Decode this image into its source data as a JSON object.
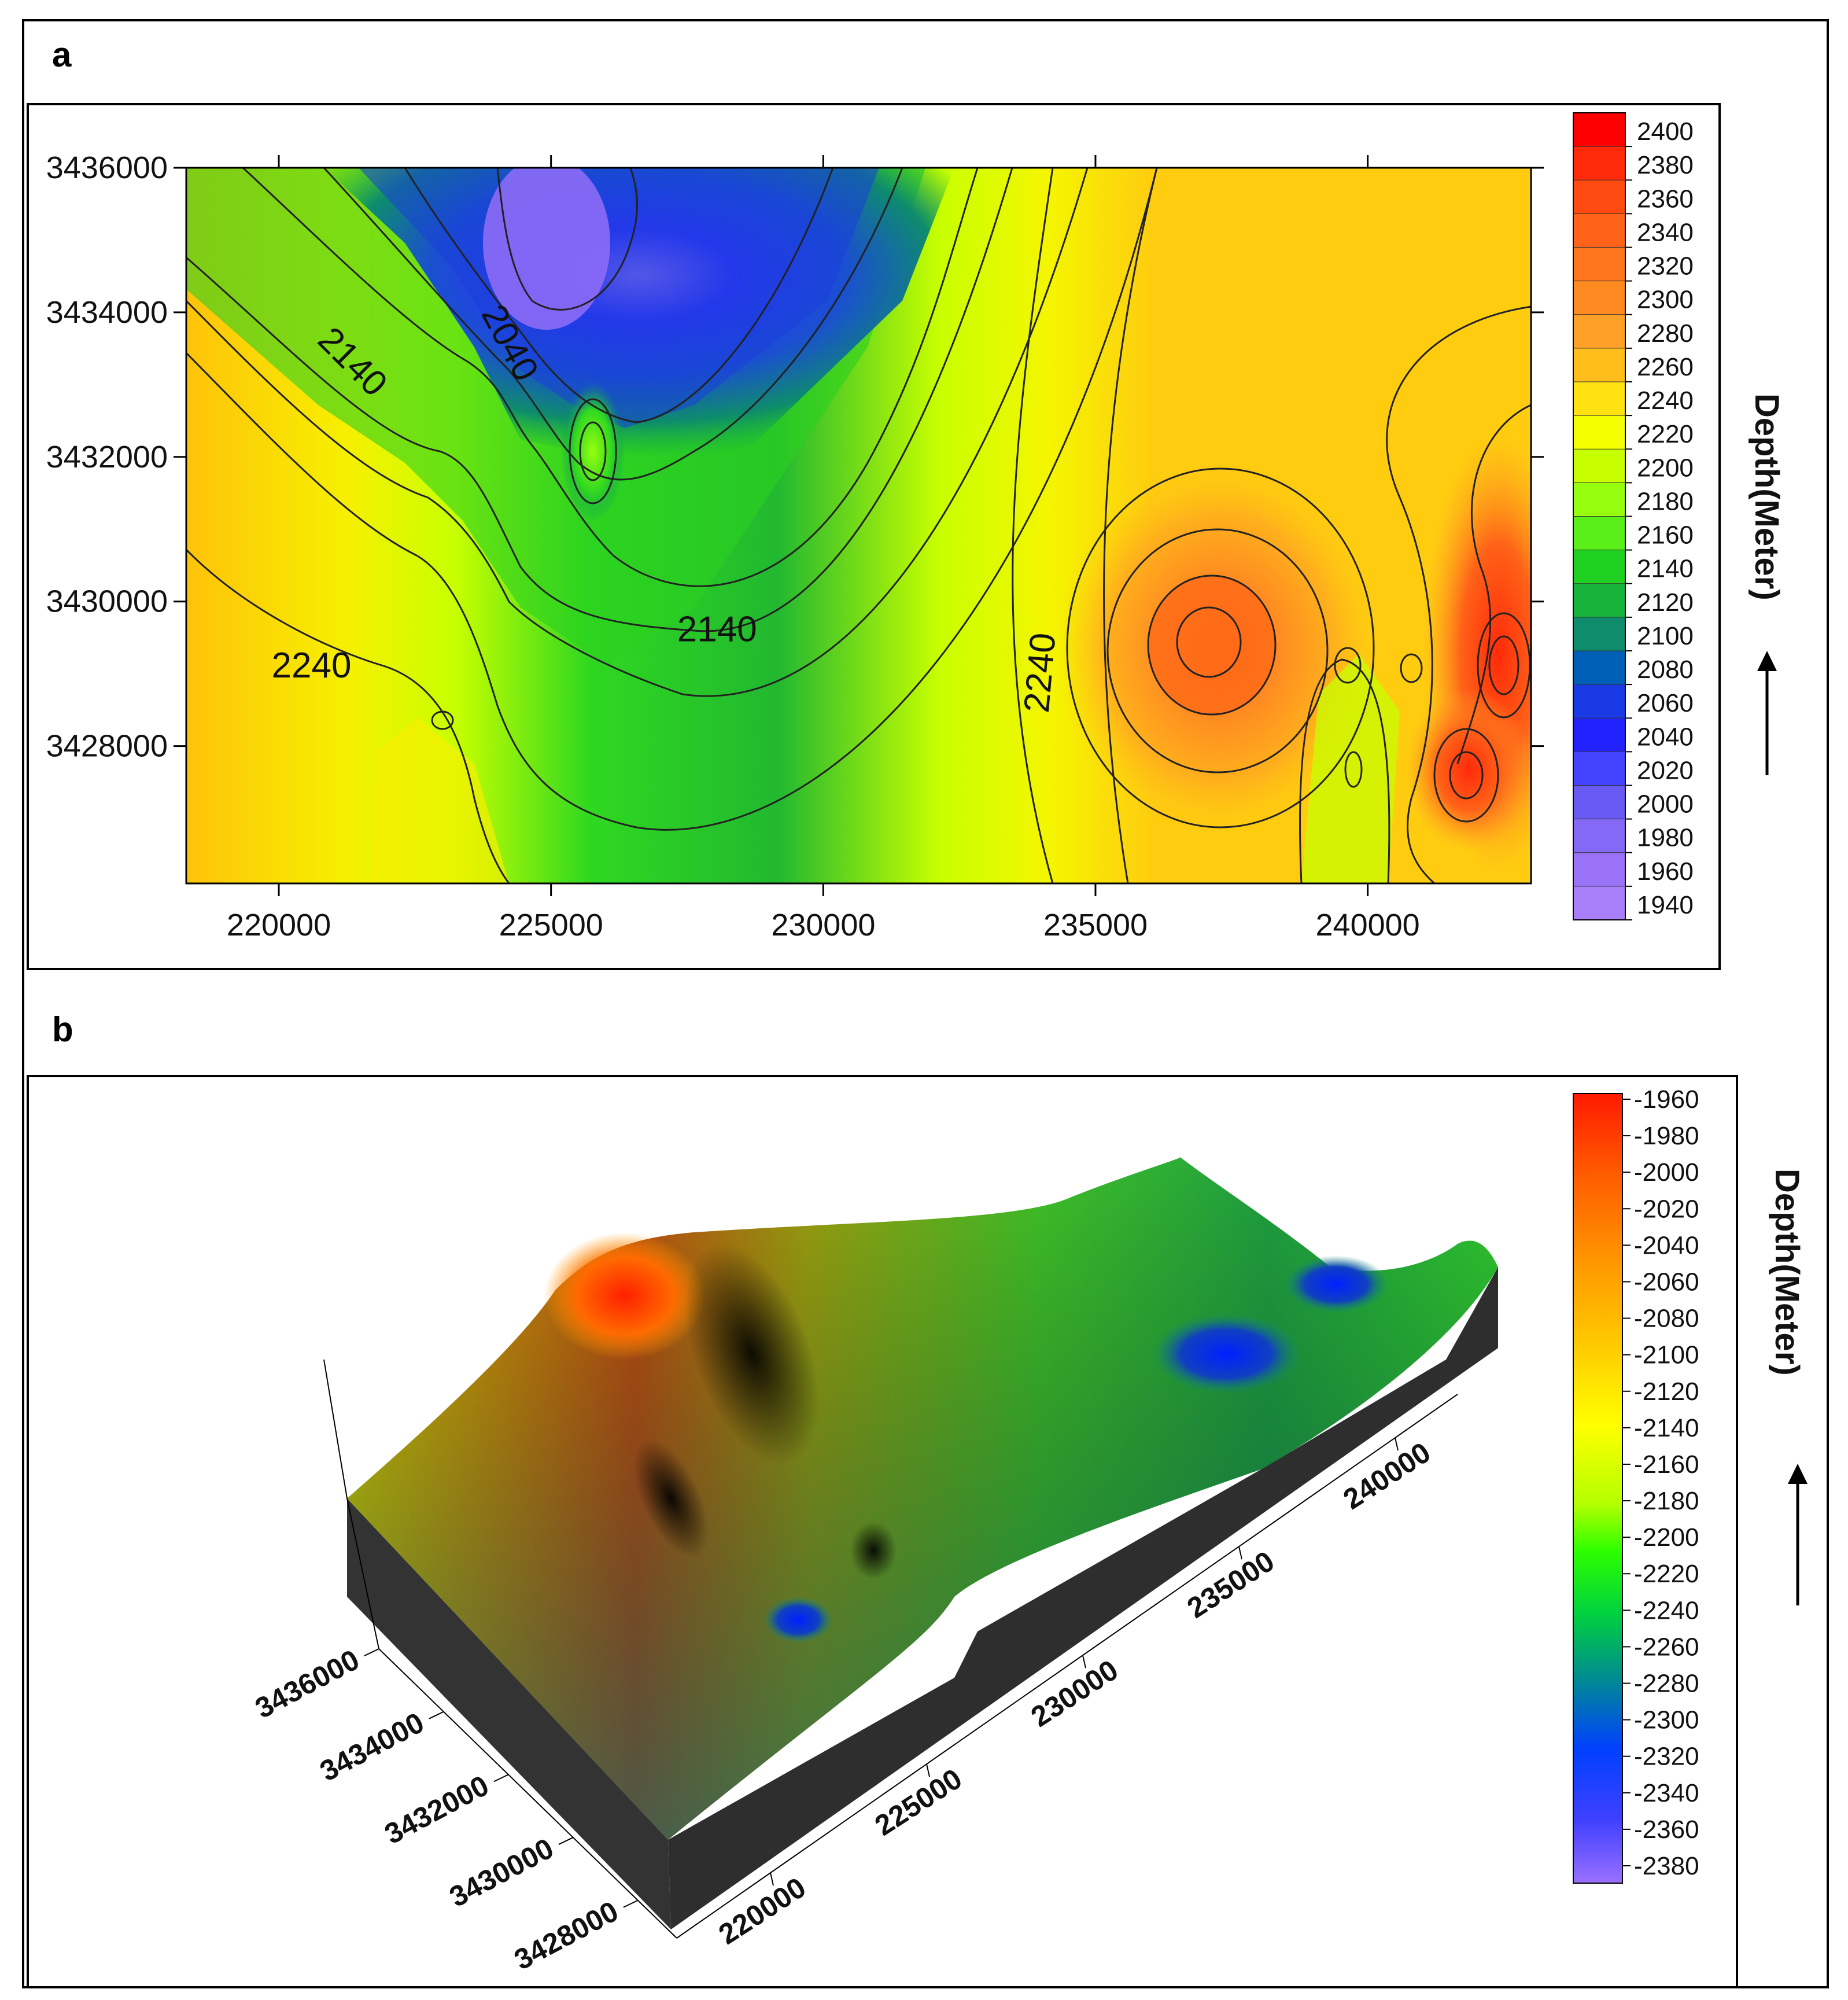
{
  "panels": [
    {
      "label": "a"
    },
    {
      "label": "b"
    }
  ],
  "chart_data": [
    {
      "type": "heatmap",
      "subtype": "contour-map",
      "panel": "a",
      "x_ticks": [
        "220000",
        "225000",
        "230000",
        "235000",
        "240000"
      ],
      "x_tick_values": [
        220000,
        225000,
        230000,
        235000,
        240000
      ],
      "xlim": [
        218300,
        243000
      ],
      "y_ticks": [
        "3436000",
        "3434000",
        "3432000",
        "3430000",
        "3428000"
      ],
      "y_tick_values": [
        3436000,
        3434000,
        3432000,
        3430000,
        3428000
      ],
      "ylim": [
        3426100,
        3436000
      ],
      "colorbar": {
        "title": "Depth(Meter)",
        "levels": [
          "2400",
          "2380",
          "2360",
          "2340",
          "2320",
          "2300",
          "2280",
          "2260",
          "2240",
          "2220",
          "2200",
          "2180",
          "2160",
          "2140",
          "2120",
          "2100",
          "2080",
          "2060",
          "2040",
          "2020",
          "2000",
          "1980",
          "1960",
          "1940"
        ],
        "colors": [
          "#ff0000",
          "#ff2a0a",
          "#ff4a12",
          "#ff6218",
          "#ff761e",
          "#ff8a22",
          "#ffa028",
          "#ffbe1c",
          "#ffe010",
          "#f6ff00",
          "#c8ff00",
          "#96ff10",
          "#5aef18",
          "#1fd020",
          "#16b43a",
          "#0e8c6c",
          "#0060b8",
          "#1a3ae6",
          "#2222ff",
          "#4444ff",
          "#6a5af4",
          "#8468f6",
          "#9a72f8",
          "#aa80fa"
        ]
      },
      "contour_labels": [
        {
          "text": "2140",
          "x": 221200,
          "y": 3433200
        },
        {
          "text": "2040",
          "x": 224050,
          "y": 3433500
        },
        {
          "text": "2140",
          "x": 228050,
          "y": 3429450
        },
        {
          "text": "2240",
          "x": 220600,
          "y": 3428950
        },
        {
          "text": "2240",
          "x": 234200,
          "y": 3429000
        }
      ],
      "features": [
        {
          "kind": "minimum",
          "x": 224800,
          "y": 3434800,
          "depth": 1940
        },
        {
          "kind": "high",
          "x": 237000,
          "y": 3429300,
          "depth": 2320
        },
        {
          "kind": "high",
          "x": 242400,
          "y": 3429000,
          "depth": 2380
        },
        {
          "kind": "high",
          "x": 241600,
          "y": 3427600,
          "depth": 2340
        },
        {
          "kind": "local",
          "x": 225800,
          "y": 3432100,
          "depth": 2160
        },
        {
          "kind": "local",
          "x": 223100,
          "y": 3428400,
          "depth": 2260
        }
      ]
    },
    {
      "type": "heatmap",
      "subtype": "3d-surface",
      "panel": "b",
      "x_ticks": [
        "220000",
        "225000",
        "230000",
        "235000",
        "240000"
      ],
      "x_tick_values": [
        220000,
        225000,
        230000,
        235000,
        240000
      ],
      "y_ticks": [
        "3436000",
        "3434000",
        "3432000",
        "3430000",
        "3428000"
      ],
      "y_tick_values": [
        3436000,
        3434000,
        3432000,
        3430000,
        3428000
      ],
      "colorbar": {
        "title": "Depth(Meter)",
        "levels": [
          "-1960",
          "-1980",
          "-2000",
          "-2020",
          "-2040",
          "-2060",
          "-2080",
          "-2100",
          "-2120",
          "-2140",
          "-2160",
          "-2180",
          "-2200",
          "-2220",
          "-2240",
          "-2260",
          "-2280",
          "-2300",
          "-2320",
          "-2340",
          "-2360",
          "-2380"
        ],
        "gradient": [
          "#ff1a00",
          "#ff5a00",
          "#ff9a00",
          "#ffd000",
          "#ffff00",
          "#b4ff00",
          "#2cff00",
          "#00d040",
          "#008c90",
          "#0040ff",
          "#4040ff",
          "#9a70ff"
        ]
      }
    }
  ]
}
